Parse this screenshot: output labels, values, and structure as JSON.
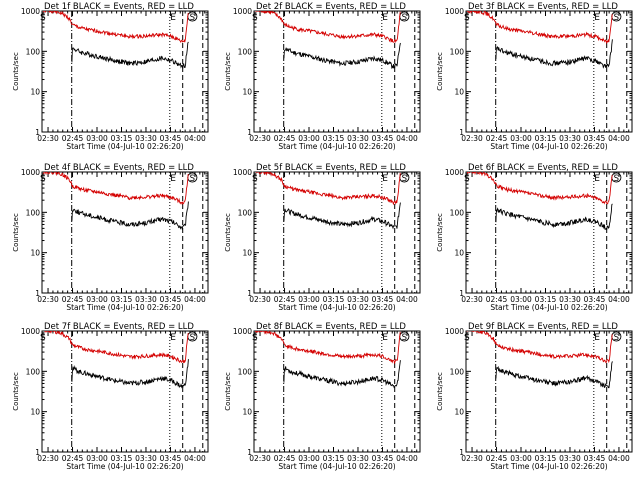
{
  "colors": {
    "events": "#000000",
    "lld": "#d40000",
    "axis": "#000000",
    "background": "#ffffff"
  },
  "charts": [
    {
      "title": "Det 1f BLACK = Events, RED = LLD",
      "tag": "1f"
    },
    {
      "title": "Det 2f BLACK = Events, RED = LLD",
      "tag": "2f"
    },
    {
      "title": "Det 3f BLACK = Events, RED = LLD",
      "tag": "3f"
    },
    {
      "title": "Det 4f BLACK = Events, RED = LLD",
      "tag": "4f"
    },
    {
      "title": "Det 5f BLACK = Events, RED = LLD",
      "tag": "5f"
    },
    {
      "title": "Det 6f BLACK = Events, RED = LLD",
      "tag": "6f"
    },
    {
      "title": "Det 7f BLACK = Events, RED = LLD",
      "tag": "7f"
    },
    {
      "title": "Det 8f BLACK = Events, RED = LLD",
      "tag": "8f"
    },
    {
      "title": "Det 9f BLACK = Events, RED = LLD",
      "tag": "9f"
    }
  ],
  "chart_data": {
    "type": "line",
    "layout": "3x3 grid of identical-axis panels",
    "xlabel": "Start Time (04-Jul-10 02:26:20)",
    "ylabel": "Counts/sec",
    "x_ticks": [
      "02:30",
      "02:45",
      "03:00",
      "03:15",
      "03:30",
      "03:45",
      "04:00"
    ],
    "x_tick_minutes": [
      30,
      45,
      60,
      75,
      90,
      105,
      120
    ],
    "xlim_minutes_after_02:00": [
      26.3,
      128
    ],
    "y_scale": "log",
    "y_ticks": [
      "1",
      "10",
      "100",
      "1000"
    ],
    "ylim": [
      1,
      1000
    ],
    "markers": [
      {
        "label": "S",
        "x": 26.8,
        "style": "text"
      },
      {
        "label": "E",
        "x": 106.6,
        "style": "text"
      },
      {
        "label": "S",
        "x": 118.4,
        "style": "text-circled"
      },
      {
        "label": "",
        "x": 44.5,
        "style": "dash-dot"
      },
      {
        "label": "",
        "x": 104.6,
        "style": "dotted"
      },
      {
        "label": "",
        "x": 112.5,
        "style": "dashed"
      },
      {
        "label": "",
        "x": 124.8,
        "style": "dashed"
      }
    ],
    "series": [
      {
        "legend": "RED = LLD",
        "color": "#d40000",
        "x": [
          27,
          32,
          38,
          43,
          45,
          50,
          55,
          60,
          70,
          80,
          90,
          100,
          106,
          112,
          114,
          116
        ],
        "y": [
          1000,
          1000,
          900,
          650,
          450,
          380,
          340,
          320,
          270,
          230,
          240,
          260,
          230,
          175,
          180,
          1000
        ]
      },
      {
        "legend": "BLACK = Events",
        "color": "#000000",
        "x": [
          44.6,
          45,
          50,
          55,
          60,
          70,
          80,
          90,
          100,
          106,
          112,
          114,
          116
        ],
        "y": [
          60,
          120,
          95,
          85,
          75,
          60,
          50,
          55,
          68,
          58,
          42,
          45,
          180
        ]
      }
    ]
  }
}
